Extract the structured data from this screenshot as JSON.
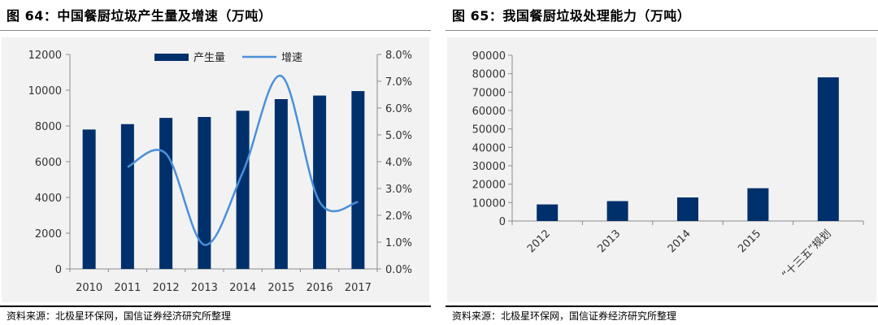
{
  "figures": [
    {
      "title": "图 64：中国餐厨垃圾产生量及增速（万吨）",
      "source": "资料来源：北极星环保网，国信证券经济研究所整理"
    },
    {
      "title": "图 65：我国餐厨垃圾处理能力（万吨）",
      "source": "资料来源：北极星环保网，国信证券经济研究所整理"
    }
  ],
  "colors": {
    "bar": "#00306b",
    "line": "#4a90d9",
    "axis": "#8c8c8c",
    "chart_bg": "#f2f2f2"
  },
  "chart_data": [
    {
      "type": "bar+line",
      "categories": [
        "2010",
        "2011",
        "2012",
        "2013",
        "2014",
        "2015",
        "2016",
        "2017"
      ],
      "series": [
        {
          "name": "产生量",
          "type": "bar",
          "axis": "left",
          "values": [
            7800,
            8100,
            8450,
            8500,
            8850,
            9500,
            9700,
            9950
          ]
        },
        {
          "name": "增速",
          "type": "line",
          "axis": "right",
          "smooth": true,
          "values": [
            null,
            3.8,
            4.3,
            0.9,
            3.6,
            7.2,
            2.5,
            2.5
          ]
        }
      ],
      "yleft": {
        "lim": [
          0,
          12000
        ],
        "ticks": [
          "0",
          "2000",
          "4000",
          "6000",
          "8000",
          "10000",
          "12000"
        ]
      },
      "yright": {
        "lim": [
          0,
          8
        ],
        "ticks": [
          "0.0%",
          "1.0%",
          "2.0%",
          "3.0%",
          "4.0%",
          "5.0%",
          "6.0%",
          "7.0%",
          "8.0%"
        ]
      },
      "legend": "top-center",
      "grid": false
    },
    {
      "type": "bar",
      "categories": [
        "2012",
        "2013",
        "2014",
        "2015",
        "“十三五”规划"
      ],
      "values": [
        9000,
        10800,
        12800,
        17800,
        78000
      ],
      "ylim": [
        0,
        90000
      ],
      "yticks": [
        "0",
        "10000",
        "20000",
        "30000",
        "40000",
        "50000",
        "60000",
        "70000",
        "80000",
        "90000"
      ],
      "xlabel_rotation": -45,
      "grid": false
    }
  ]
}
